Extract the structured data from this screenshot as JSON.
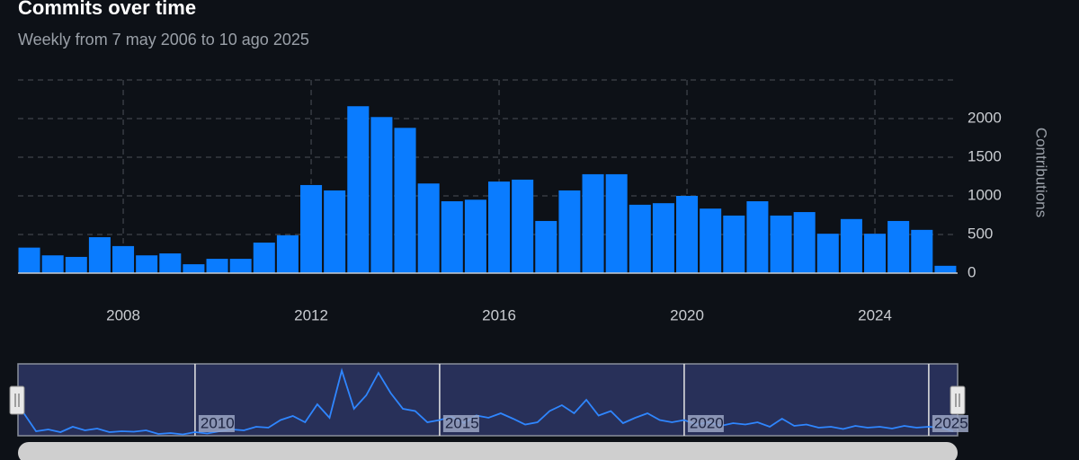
{
  "chart_data": [
    {
      "type": "bar",
      "title": "Commits over time",
      "subtitle": "Weekly from 7 may 2006 to 10 ago 2025",
      "y_label": "Contributions",
      "color": "#0a7cff",
      "grid": true,
      "x": [
        2006,
        2006.5,
        2007,
        2007.5,
        2008,
        2008.5,
        2009,
        2009.5,
        2010,
        2010.5,
        2011,
        2011.5,
        2012,
        2012.5,
        2013,
        2013.5,
        2014,
        2014.5,
        2015,
        2015.5,
        2016,
        2016.5,
        2017,
        2017.5,
        2018,
        2018.5,
        2019,
        2019.5,
        2020,
        2020.5,
        2021,
        2021.5,
        2022,
        2022.5,
        2023,
        2023.5,
        2024,
        2024.5,
        2025,
        2025.5
      ],
      "values": [
        330,
        230,
        210,
        465,
        350,
        230,
        255,
        115,
        185,
        185,
        395,
        490,
        1140,
        1070,
        2160,
        2020,
        1880,
        1160,
        930,
        950,
        1185,
        1210,
        675,
        1070,
        1280,
        1280,
        885,
        905,
        1000,
        835,
        745,
        930,
        745,
        790,
        510,
        700,
        510,
        675,
        560,
        95
      ],
      "xlim": [
        2005.76,
        2025.76
      ],
      "xticks": [
        2008,
        2012,
        2016,
        2020,
        2024
      ],
      "ylim": [
        0,
        2500
      ],
      "yticks": [
        0,
        500,
        1000,
        1500,
        2000
      ]
    },
    {
      "type": "line",
      "color": "#2f86ff",
      "x": [
        2006.5,
        2006.75,
        2007,
        2007.25,
        2007.5,
        2007.75,
        2008,
        2008.25,
        2008.5,
        2008.75,
        2009,
        2009.25,
        2009.5,
        2009.75,
        2010,
        2010.25,
        2010.5,
        2010.75,
        2011,
        2011.25,
        2011.5,
        2011.75,
        2012,
        2012.25,
        2012.5,
        2012.75,
        2013,
        2013.25,
        2013.5,
        2013.75,
        2014,
        2014.25,
        2014.5,
        2014.75,
        2015,
        2015.25,
        2015.5,
        2015.75,
        2016,
        2016.25,
        2016.5,
        2016.75,
        2017,
        2017.25,
        2017.5,
        2017.75,
        2018,
        2018.25,
        2018.5,
        2018.75,
        2019,
        2019.25,
        2019.5,
        2019.75,
        2020,
        2020.25,
        2020.5,
        2020.75,
        2021,
        2021.25,
        2021.5,
        2021.75,
        2022,
        2022.25,
        2022.5,
        2022.75,
        2023,
        2023.25,
        2023.5,
        2023.75,
        2024,
        2024.25,
        2024.5,
        2024.75,
        2025,
        2025.25,
        2025.5
      ],
      "values": [
        50,
        10,
        14,
        8,
        20,
        12,
        16,
        8,
        10,
        9,
        12,
        4,
        6,
        3,
        8,
        5,
        10,
        14,
        12,
        20,
        18,
        35,
        44,
        30,
        70,
        40,
        145,
        60,
        90,
        140,
        95,
        60,
        55,
        30,
        35,
        42,
        28,
        45,
        40,
        50,
        38,
        25,
        30,
        55,
        68,
        50,
        80,
        45,
        55,
        28,
        40,
        50,
        35,
        30,
        35,
        25,
        30,
        22,
        28,
        25,
        30,
        20,
        38,
        22,
        25,
        18,
        20,
        15,
        22,
        18,
        20,
        16,
        22,
        18,
        20,
        18,
        10
      ],
      "xlim": [
        2006.38,
        2025.59
      ],
      "xticks": [
        2010,
        2015,
        2020,
        2025
      ],
      "ylim": [
        0,
        160
      ]
    }
  ]
}
